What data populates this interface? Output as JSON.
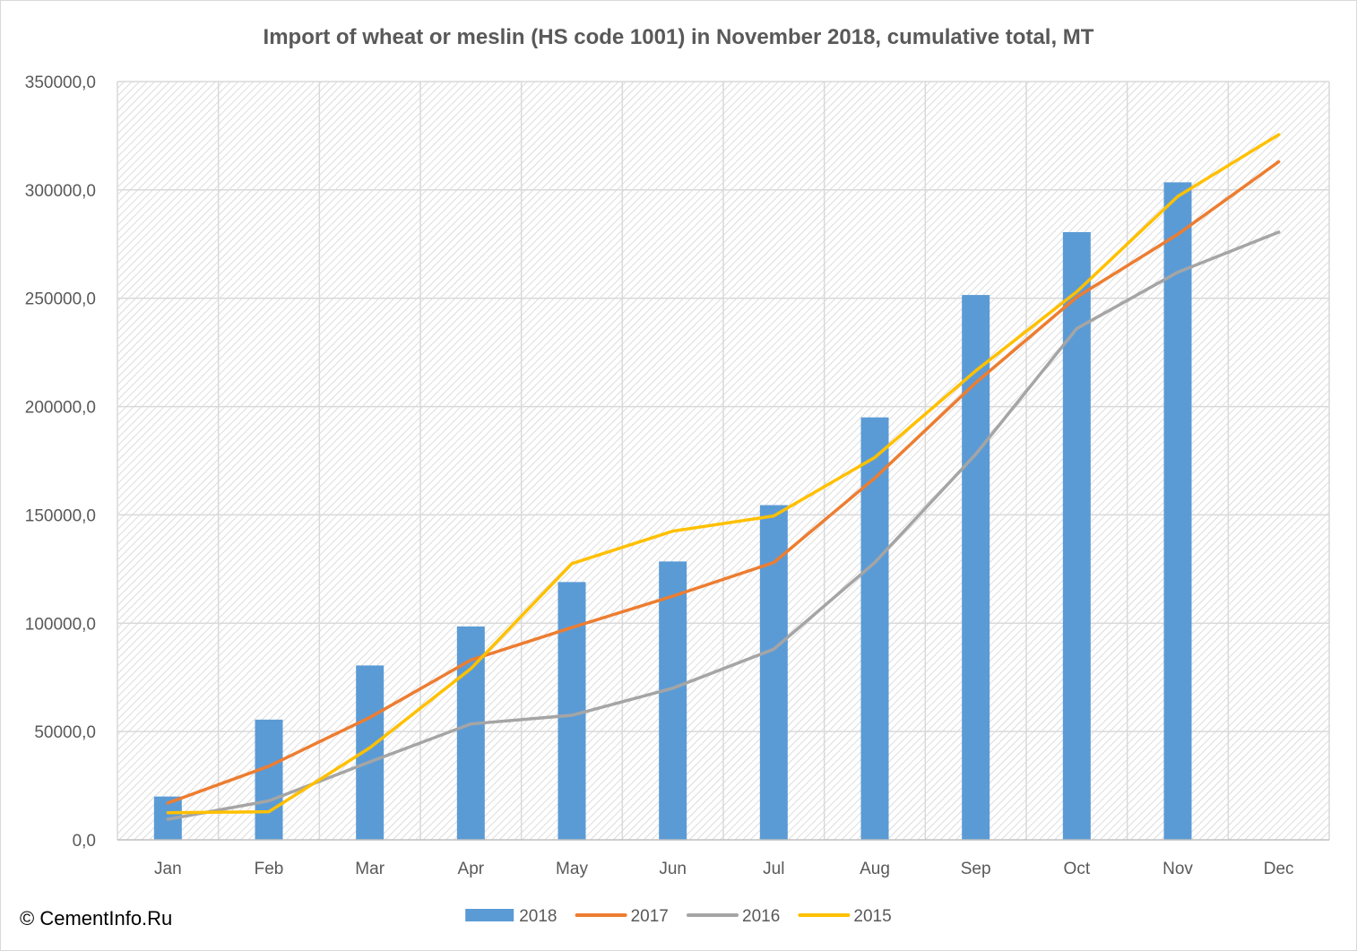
{
  "chart_data": {
    "type": "bar",
    "title": "Import of wheat or meslin (HS code 1001) in November 2018, cumulative total, MT",
    "xlabel": "",
    "ylabel": "",
    "categories": [
      "Jan",
      "Feb",
      "Mar",
      "Apr",
      "May",
      "Jun",
      "Jul",
      "Aug",
      "Sep",
      "Oct",
      "Nov",
      "Dec"
    ],
    "ylim": [
      0,
      350000
    ],
    "yticks": [
      0,
      50000,
      100000,
      150000,
      200000,
      250000,
      300000,
      350000
    ],
    "ytick_labels": [
      "0,0",
      "50000,0",
      "100000,0",
      "150000,0",
      "200000,0",
      "250000,0",
      "300000,0",
      "350000,0"
    ],
    "grid": true,
    "legend_position": "bottom",
    "series": [
      {
        "name": "2018",
        "type": "bar",
        "color": "#5b9bd5",
        "values": [
          20000,
          55500,
          80500,
          98500,
          119000,
          128500,
          154500,
          195000,
          251500,
          280500,
          303500,
          null
        ]
      },
      {
        "name": "2017",
        "type": "line",
        "color": "#ed7d31",
        "values": [
          17000,
          34000,
          56500,
          83000,
          98000,
          112500,
          128000,
          167000,
          211000,
          250500,
          279500,
          313000
        ]
      },
      {
        "name": "2016",
        "type": "line",
        "color": "#a5a5a5",
        "values": [
          9500,
          18000,
          36000,
          53500,
          57500,
          70000,
          88000,
          128000,
          178000,
          236000,
          262000,
          280500
        ]
      },
      {
        "name": "2015",
        "type": "line",
        "color": "#ffc000",
        "values": [
          12500,
          13000,
          42500,
          79000,
          127500,
          142500,
          149500,
          176500,
          216500,
          253000,
          297000,
          325500
        ]
      }
    ]
  },
  "watermark": "© CementInfo.Ru"
}
